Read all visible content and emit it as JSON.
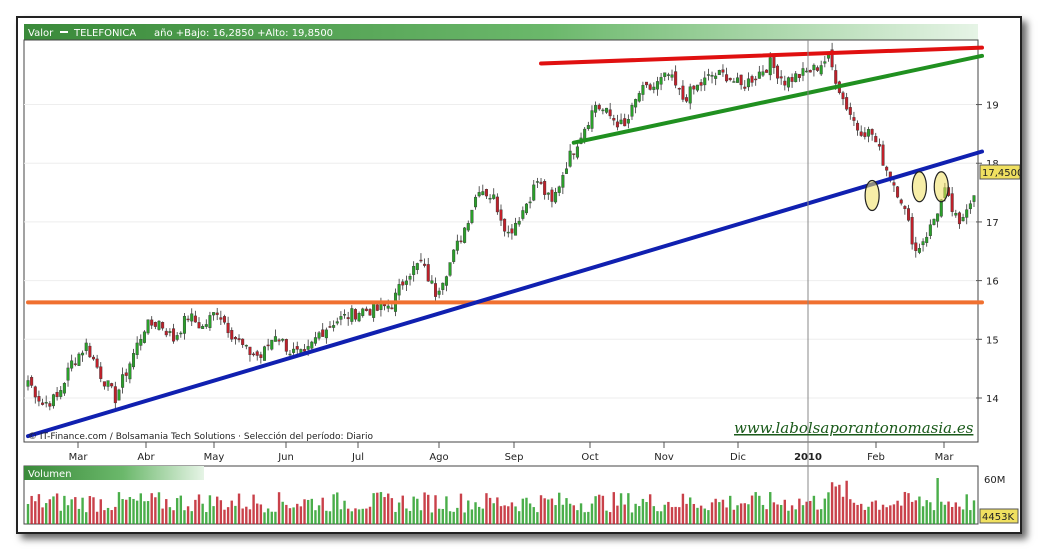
{
  "header": {
    "label": "Valor",
    "ticker": "TELEFONICA",
    "range_text": "año +Bajo: 16,2850 +Alto: 19,8500"
  },
  "credit": "© IT-Finance.com / Bolsamania Tech Solutions · Selección del período: Diario",
  "watermark": "www.labolsaporantonomasia.es",
  "volume_label": "Volumen",
  "price_tag": "17,4500",
  "volume_tag": "4453K",
  "volume_axis": {
    "max_label": "60M"
  },
  "colors": {
    "up": "#2aa02a",
    "down": "#c0202a",
    "support_orange": "#f07030",
    "trend_blue": "#1020b0",
    "resistance_red": "#e01010",
    "channel_green": "#209020",
    "highlight_yellow": "#f0e060"
  },
  "chart_data": {
    "type": "candlestick",
    "title": "TELEFONICA",
    "x_labels": [
      "Mar",
      "Abr",
      "May",
      "Jun",
      "Jul",
      "Ago",
      "Sep",
      "Oct",
      "Nov",
      "Dic",
      "2010",
      "Feb",
      "Mar"
    ],
    "y_ticks": [
      14,
      15,
      16,
      17,
      18,
      19
    ],
    "y_tick_labels": [
      "14",
      "15",
      "16",
      "17",
      "18",
      "19"
    ],
    "low": 16.285,
    "high": 19.85,
    "last": 17.45,
    "ylim": [
      13.25,
      20.1
    ],
    "price_path": [
      [
        0,
        14.3
      ],
      [
        4,
        13.9
      ],
      [
        8,
        14.0
      ],
      [
        12,
        14.6
      ],
      [
        16,
        14.9
      ],
      [
        20,
        14.4
      ],
      [
        24,
        14.0
      ],
      [
        28,
        14.6
      ],
      [
        32,
        15.2
      ],
      [
        36,
        15.3
      ],
      [
        40,
        15.0
      ],
      [
        44,
        15.4
      ],
      [
        48,
        15.2
      ],
      [
        52,
        15.5
      ],
      [
        56,
        15.1
      ],
      [
        60,
        14.8
      ],
      [
        64,
        14.7
      ],
      [
        68,
        15.1
      ],
      [
        72,
        14.8
      ],
      [
        76,
        14.7
      ],
      [
        80,
        15.1
      ],
      [
        84,
        15.3
      ],
      [
        88,
        15.4
      ],
      [
        92,
        15.5
      ],
      [
        96,
        15.5
      ],
      [
        100,
        15.6
      ],
      [
        104,
        16.1
      ],
      [
        108,
        16.3
      ],
      [
        112,
        15.8
      ],
      [
        116,
        16.3
      ],
      [
        120,
        16.9
      ],
      [
        124,
        17.6
      ],
      [
        128,
        17.4
      ],
      [
        132,
        16.8
      ],
      [
        136,
        17.2
      ],
      [
        140,
        17.7
      ],
      [
        144,
        17.3
      ],
      [
        148,
        18.0
      ],
      [
        152,
        18.5
      ],
      [
        156,
        19.0
      ],
      [
        160,
        18.8
      ],
      [
        164,
        18.6
      ],
      [
        168,
        19.2
      ],
      [
        172,
        19.3
      ],
      [
        176,
        19.5
      ],
      [
        180,
        19.1
      ],
      [
        184,
        19.3
      ],
      [
        188,
        19.5
      ],
      [
        192,
        19.5
      ],
      [
        196,
        19.3
      ],
      [
        200,
        19.5
      ],
      [
        204,
        19.7
      ],
      [
        208,
        19.4
      ],
      [
        212,
        19.5
      ],
      [
        216,
        19.6
      ],
      [
        220,
        19.8
      ],
      [
        224,
        19.1
      ],
      [
        228,
        18.6
      ],
      [
        232,
        18.5
      ],
      [
        236,
        17.9
      ],
      [
        240,
        17.4
      ],
      [
        244,
        16.5
      ],
      [
        248,
        16.9
      ],
      [
        252,
        17.5
      ],
      [
        256,
        16.9
      ],
      [
        258,
        17.3
      ],
      [
        260,
        17.45
      ]
    ],
    "lines": [
      {
        "name": "support",
        "color": "#f07030",
        "points": [
          [
            0,
            15.63
          ],
          [
            260,
            15.63
          ]
        ]
      },
      {
        "name": "uptrend",
        "color": "#1020b0",
        "points": [
          [
            0,
            13.35
          ],
          [
            260,
            18.2
          ]
        ]
      },
      {
        "name": "resistance",
        "color": "#e01010",
        "points": [
          [
            141,
            19.7
          ],
          [
            260,
            19.97
          ]
        ]
      },
      {
        "name": "channel",
        "color": "#209020",
        "points": [
          [
            150,
            18.35
          ],
          [
            260,
            19.83
          ]
        ]
      }
    ],
    "highlights": [
      [
        232,
        17.45
      ],
      [
        245,
        17.6
      ],
      [
        251,
        17.6
      ]
    ],
    "volume_marker": 250
  }
}
